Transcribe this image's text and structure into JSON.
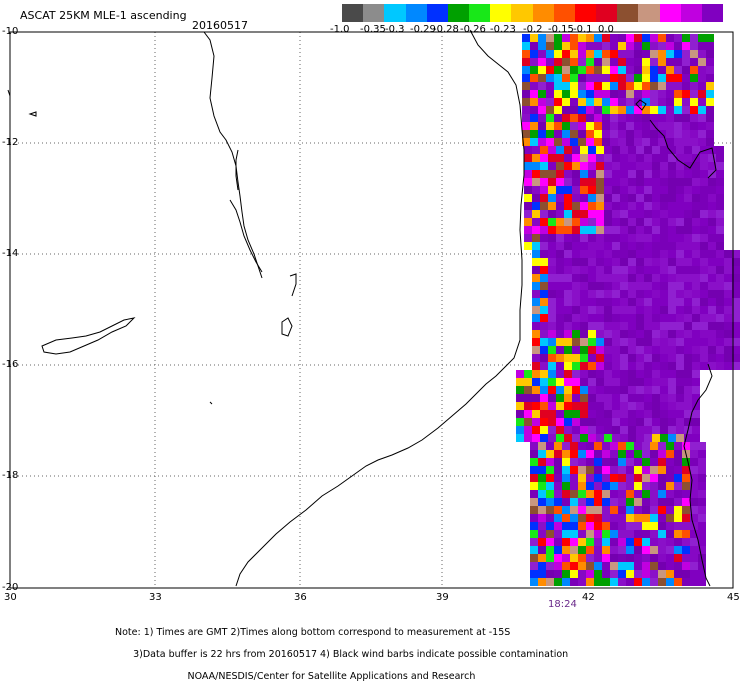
{
  "header": {
    "title": "ASCAT 25KM MLE-1 ascending",
    "date": "20160517"
  },
  "colorbar": {
    "colors": [
      "#4a4a4a",
      "#8c8c8c",
      "#00c8ff",
      "#0088ff",
      "#0030ff",
      "#00a000",
      "#18e818",
      "#ffff00",
      "#ffc800",
      "#ff8c00",
      "#ff5000",
      "#ff0000",
      "#e00020",
      "#8c5030",
      "#c89680",
      "#ff00ff",
      "#c000e0",
      "#8000c0"
    ],
    "labels": [
      "-1.0",
      "-0.35",
      "-0.3",
      "-0.29",
      "-0.28",
      "-0.26",
      "-0.23",
      "-0.2",
      "-0.15",
      "-0.1",
      "0.0"
    ]
  },
  "axes": {
    "y_labels": [
      "-10",
      "-12",
      "-14",
      "-16",
      "-18",
      "-20"
    ],
    "x_labels": [
      "30",
      "33",
      "36",
      "39",
      "42",
      "45"
    ]
  },
  "time_label": "18:24",
  "notes": [
    "Note: 1) Times are GMT 2)Times along bottom correspond to measurement at -15S",
    "      3)Data buffer is 22 hrs from 20160517 4) Black wind barbs indicate possible contamination",
    "                        NOAA/NESDIS/Center for Satellite Applications and Research"
  ]
}
